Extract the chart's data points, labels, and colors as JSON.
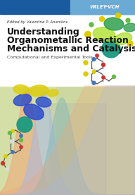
{
  "bg_color": "#f5f5e8",
  "illus_bg_left": "#e8edc0",
  "illus_bg_right": "#d8e8c0",
  "top_bar_left_color": "#1a5a9e",
  "top_bar_right_color": "#6aaad4",
  "title_line1": "Understanding",
  "title_line2": "Organometallic Reaction",
  "title_line3": "Mechanisms and Catalysis",
  "subtitle": "Computational and Experimental Tools",
  "editor_text": "Edited by Valentine P. Ananikov",
  "publisher": "WILEY-VCH",
  "title_color": "#111111",
  "subtitle_color": "#444444",
  "editor_color": "#333333",
  "curve1_color": "#f0a878",
  "curve2_color": "#a8b8e8",
  "curve3_color": "#88bbb8",
  "wiley_text_color": "#ffffff",
  "stick_color": "#555555",
  "atom_blue": "#4477bb",
  "atom_red": "#cc3333",
  "atom_green": "#44aa44",
  "atom_teal": "#1a9980",
  "atom_yellow": "#ddcc00",
  "atom_white": "#dddddd",
  "atom_gray": "#888888",
  "atom_sulfur": "#cccc22",
  "atom_chlorine": "#66bb44",
  "orbital_blue": "#2244cc",
  "orbital_yellow": "#ddcc00",
  "orbital_ygreen": "#aadd22",
  "orbital_dkgreen": "#229944"
}
